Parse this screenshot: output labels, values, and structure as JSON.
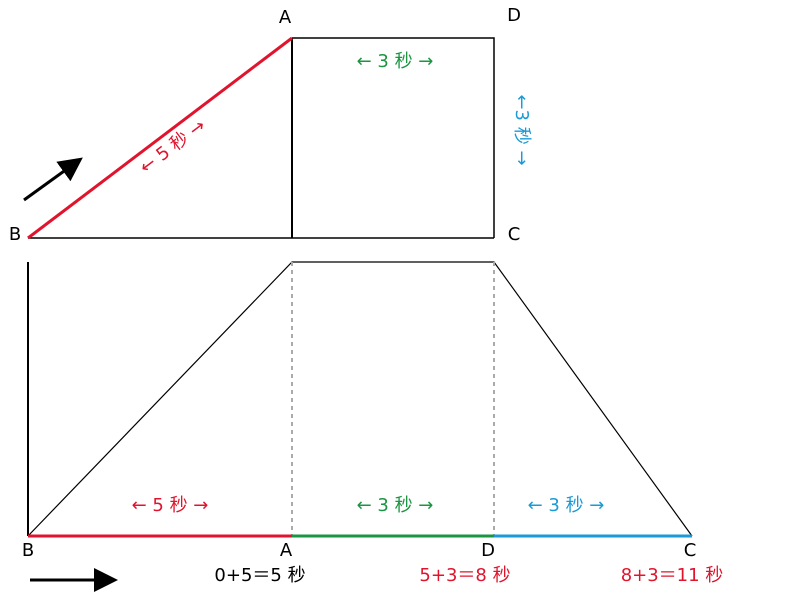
{
  "top": {
    "labels": [
      "A",
      "D",
      "B",
      "C"
    ],
    "segments": [
      "← 5 秒 →",
      "← 3 秒 →",
      "←3 秒 →"
    ]
  },
  "bottom": {
    "labels": [
      "B",
      "A",
      "D",
      "C"
    ],
    "segments": [
      "← 5 秒 →",
      "← 3 秒 →",
      "← 3 秒 →"
    ],
    "times": [
      "0+5＝5 秒",
      "5+3＝8 秒",
      "8+3＝11 秒"
    ]
  }
}
